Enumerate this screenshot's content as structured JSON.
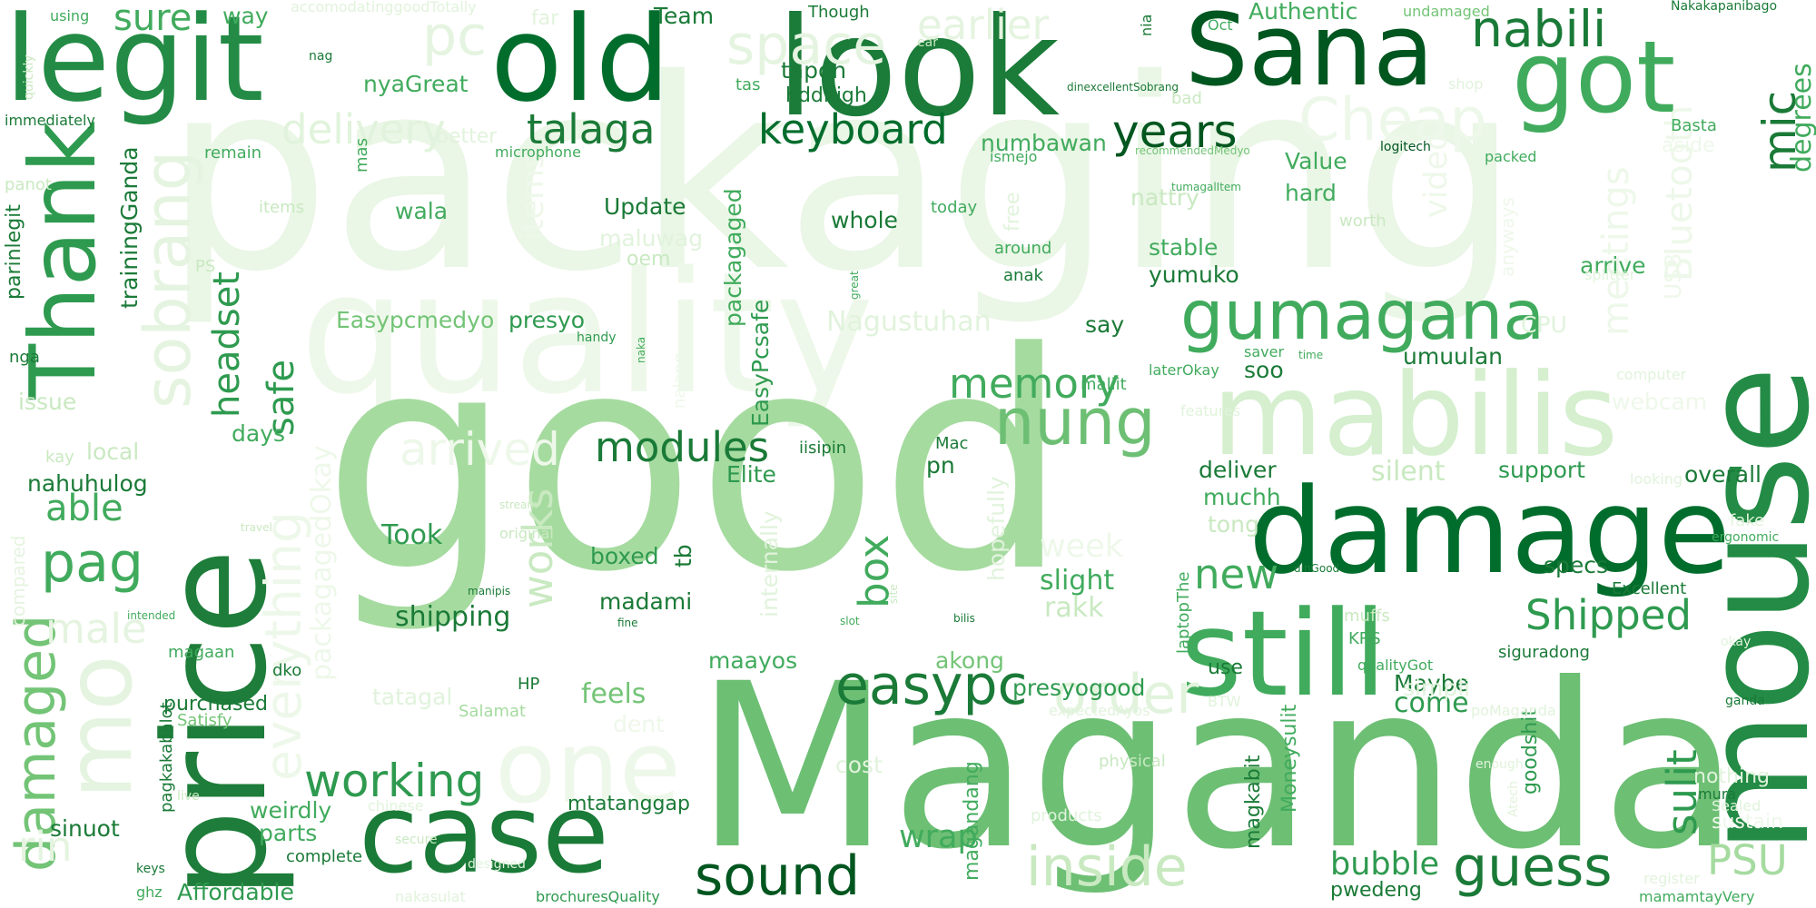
{
  "palette": {
    "background": "#ffffff",
    "green_1": "#e7f5e2",
    "green_2": "#c9e9c1",
    "green_3": "#a3d99a",
    "green_4": "#73c476",
    "green_5": "#3fa85b",
    "green_6": "#228b45",
    "green_7": "#006d2c",
    "green_8": "#00561f"
  },
  "words": [
    "packaging",
    "good",
    "Maganda",
    "quality",
    "mabilis",
    "damage",
    "mouse",
    "price",
    "still",
    "case",
    "look",
    "old",
    "legit",
    "Sana",
    "got",
    "Thank",
    "gumagana",
    "one",
    "mo",
    "sobrang",
    "nung",
    "easypc",
    "sound",
    "damaged",
    "inside",
    "everything",
    "pag",
    "working",
    "order",
    "guess",
    "Cheap",
    "nabili",
    "keyboard",
    "space",
    "talaga",
    "delivery",
    "years",
    "pc",
    "earlier",
    "mic",
    "Bluetooth",
    "meetings",
    "headset",
    "memory",
    "modules",
    "box",
    "works",
    "arrived",
    "new",
    "Shipped",
    "sulit",
    "PSU",
    "able",
    "safe",
    "week",
    "bubble",
    "wrap",
    "items",
    "Nagustuhan",
    "video",
    "webcam",
    "USB",
    "degrees",
    "sure",
    "way",
    "Team",
    "Authentic",
    "Though",
    "nyaGreat",
    "tapon",
    "hddhigh",
    "numbawan",
    "Value",
    "hard",
    "nattry",
    "Update",
    "whole",
    "maluwag",
    "oem",
    "wala",
    "stable",
    "yumuko",
    "arrive",
    "trainingGanda",
    "parinlegit",
    "nga",
    "issue",
    "local",
    "nahuhulog",
    "days",
    "presyo",
    "Easypcmedyo",
    "packagaged",
    "EasyPcsafe",
    "say",
    "umuulan",
    "soo",
    "silent",
    "support",
    "overall",
    "deliver",
    "muchh",
    "tong",
    "Took",
    "boxed",
    "madami",
    "tb",
    "shipping",
    "slight",
    "rakk",
    "specs",
    "Excellent",
    "Maybe",
    "come",
    "feels",
    "presyogood",
    "akong",
    "maayos",
    "tatagal",
    "Moneysulit",
    "goodshit",
    "nothing",
    "magkabit",
    "magandang",
    "use",
    "weirdly",
    "parts",
    "sinuot",
    "Affordable",
    "complete",
    "HP",
    "purchased",
    "Satisfy",
    "Salamat",
    "mtatanggap",
    "pwedeng",
    "siguradong",
    "KRS",
    "muffs",
    "pagkakabalot",
    "male",
    "rin",
    "packagagedOkay",
    "compared",
    "hopefully",
    "internally",
    "Elite",
    "pn",
    "iisipin",
    "Mac",
    "dko",
    "magaan",
    "laptopThe",
    "qualityGot",
    "Sealed",
    "sustain",
    "mura",
    "mamamtayVery",
    "register",
    "products",
    "cost",
    "dent",
    "simpli",
    "physical",
    "BTW",
    "expectedAyos",
    "poMaganda",
    "enough",
    "Atech",
    "ganda",
    "fake",
    "ergonomic",
    "okay",
    "looking",
    "features",
    "computer",
    "CPU",
    "anyways",
    "splitter",
    "aside",
    "packed",
    "logitech",
    "Basta",
    "recommendedMedyo",
    "dinexcellentSobrang",
    "Oct",
    "undamaged",
    "Nakakapanibago",
    "shop",
    "far",
    "accomodatinggoodTotally",
    "using",
    "immediately",
    "quickly",
    "nag",
    "remain",
    "better",
    "mas",
    "microphone",
    "items",
    "puro",
    "PS",
    "panot",
    "kay",
    "handy",
    "naka",
    "nalang",
    "free",
    "around",
    "anak",
    "maliit",
    "saver",
    "time",
    "laterOkay",
    "tumagalItem",
    "worth",
    "great",
    "ismejo",
    "today",
    "bad",
    "tas",
    "ear",
    "nia",
    "chinese",
    "secure",
    "designed",
    "keys",
    "ghz",
    "live",
    "nakasulat",
    "brochuresQuality",
    "original",
    "manipis",
    "travel",
    "intended",
    "fine",
    "slot",
    "bilis",
    "site",
    "stream",
    "dinGood",
    "fire",
    "comes",
    "kulit"
  ]
}
